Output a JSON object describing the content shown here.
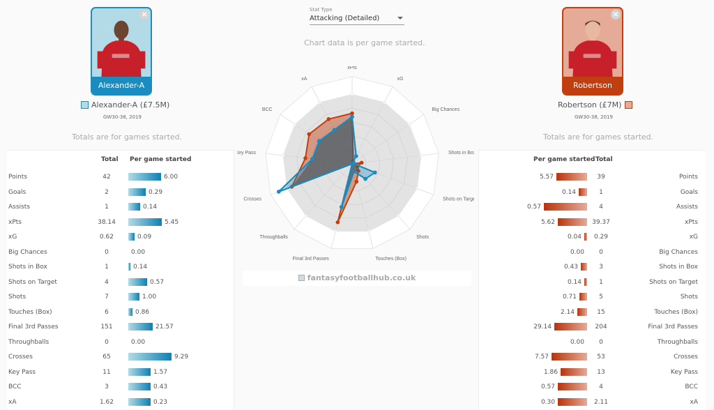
{
  "stat_type": {
    "caption": "Stat Type",
    "selected": "Attacking (Detailed)"
  },
  "chart_note": "Chart data is per game started.",
  "watermark": "fantasyfootballhub.co.uk",
  "players": {
    "left": {
      "card_name": "Alexander-A",
      "legend": "Alexander-A (£7.5M)",
      "range": "GW30-38, 2019",
      "note": "Totals are for games started.",
      "color": "#1a8cbf",
      "fill": "#b3dbe7"
    },
    "right": {
      "card_name": "Robertson",
      "legend": "Robertson (£7M)",
      "range": "GW30-38, 2019",
      "note": "Totals are for games started.",
      "color": "#c03f10",
      "fill": "#e6ab98"
    }
  },
  "table": {
    "col_total": "Total",
    "col_per_game": "Per game started",
    "rows": [
      {
        "label": "Points",
        "left_total": "42",
        "left_pg": "6.00",
        "right_total": "39",
        "right_pg": "5.57"
      },
      {
        "label": "Goals",
        "left_total": "2",
        "left_pg": "0.29",
        "right_total": "1",
        "right_pg": "0.14"
      },
      {
        "label": "Assists",
        "left_total": "1",
        "left_pg": "0.14",
        "right_total": "4",
        "right_pg": "0.57"
      },
      {
        "label": "xPts",
        "left_total": "38.14",
        "left_pg": "5.45",
        "right_total": "39.37",
        "right_pg": "5.62"
      },
      {
        "label": "xG",
        "left_total": "0.62",
        "left_pg": "0.09",
        "right_total": "0.29",
        "right_pg": "0.04"
      },
      {
        "label": "Big Chances",
        "left_total": "0",
        "left_pg": "0.00",
        "right_total": "0",
        "right_pg": "0.00"
      },
      {
        "label": "Shots in Box",
        "left_total": "1",
        "left_pg": "0.14",
        "right_total": "3",
        "right_pg": "0.43"
      },
      {
        "label": "Shots on Target",
        "left_total": "4",
        "left_pg": "0.57",
        "right_total": "1",
        "right_pg": "0.14"
      },
      {
        "label": "Shots",
        "left_total": "7",
        "left_pg": "1.00",
        "right_total": "5",
        "right_pg": "0.71"
      },
      {
        "label": "Touches (Box)",
        "left_total": "6",
        "left_pg": "0.86",
        "right_total": "15",
        "right_pg": "2.14"
      },
      {
        "label": "Final 3rd Passes",
        "left_total": "151",
        "left_pg": "21.57",
        "right_total": "204",
        "right_pg": "29.14"
      },
      {
        "label": "Throughballs",
        "left_total": "0",
        "left_pg": "0.00",
        "right_total": "0",
        "right_pg": "0.00"
      },
      {
        "label": "Crosses",
        "left_total": "65",
        "left_pg": "9.29",
        "right_total": "53",
        "right_pg": "7.57"
      },
      {
        "label": "Key Pass",
        "left_total": "11",
        "left_pg": "1.57",
        "right_total": "13",
        "right_pg": "1.86"
      },
      {
        "label": "BCC",
        "left_total": "3",
        "left_pg": "0.43",
        "right_total": "4",
        "right_pg": "0.57"
      },
      {
        "label": "xA",
        "left_total": "1.62",
        "left_pg": "0.23",
        "right_total": "2.11",
        "right_pg": "0.30"
      }
    ],
    "left_bar_widths": [
      47,
      25,
      17,
      48,
      9,
      0,
      3,
      27,
      16,
      6,
      35,
      0,
      62,
      32,
      32,
      32
    ],
    "right_bar_widths": [
      44,
      12,
      62,
      42,
      4,
      0,
      9,
      4,
      11,
      14,
      47,
      0,
      51,
      38,
      42,
      42
    ]
  },
  "chart_data": {
    "type": "radar",
    "title": "",
    "axes": [
      "xPts",
      "xG",
      "Big Chances",
      "Shots in Box",
      "Shots on Target",
      "Shots",
      "Touches (Box)",
      "Final 3rd Passes",
      "Throughballs",
      "Crosses",
      "Key Pass",
      "BCC",
      "xA"
    ],
    "series": [
      {
        "name": "Alexander-A (£7.5M)",
        "color": "#1a8cbf",
        "values": [
          5.45,
          0.09,
          0.0,
          0.14,
          0.57,
          1.0,
          0.86,
          21.57,
          0.0,
          9.29,
          1.57,
          0.43,
          0.23
        ],
        "normalized": [
          0.54,
          0.1,
          0.0,
          0.02,
          0.28,
          0.23,
          0.09,
          0.51,
          0.0,
          0.9,
          0.46,
          0.46,
          0.44
        ]
      },
      {
        "name": "Robertson (£7M)",
        "color": "#c03f10",
        "values": [
          5.62,
          0.04,
          0.0,
          0.43,
          0.14,
          0.71,
          2.14,
          29.14,
          0.0,
          7.57,
          1.86,
          0.57,
          0.3
        ],
        "normalized": [
          0.58,
          0.03,
          0.0,
          0.11,
          0.07,
          0.11,
          0.21,
          0.69,
          0.0,
          0.74,
          0.54,
          0.6,
          0.58
        ]
      }
    ],
    "grid_rings": 5,
    "note": "Chart data is per game started."
  }
}
